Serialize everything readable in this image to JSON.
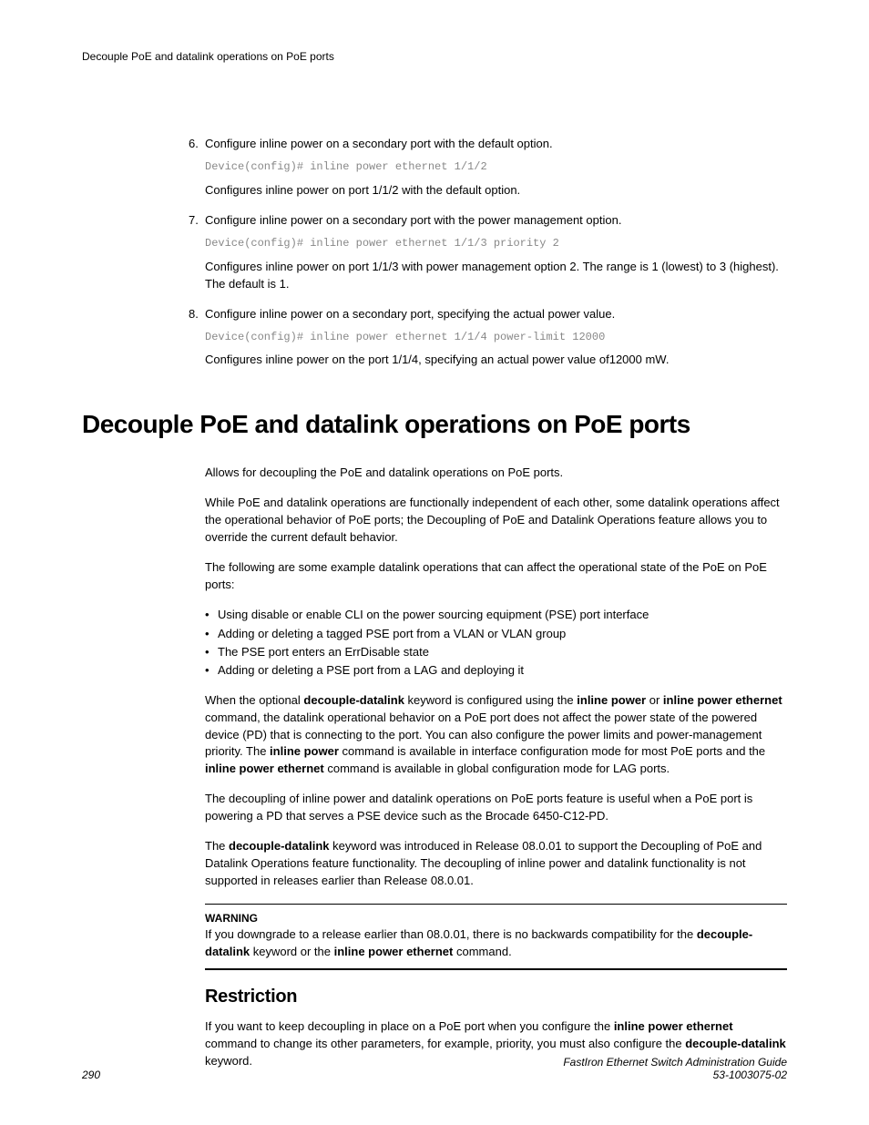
{
  "header": {
    "text": "Decouple PoE and datalink operations on PoE ports"
  },
  "steps": [
    {
      "num": "6.",
      "title": "Configure inline power on a secondary port with the default option.",
      "code": "Device(config)# inline power ethernet 1/1/2",
      "desc": "Configures inline power on port 1/1/2 with the default option."
    },
    {
      "num": "7.",
      "title": "Configure inline power on a secondary port with the power management option.",
      "code": "Device(config)# inline power ethernet 1/1/3 priority 2",
      "desc": "Configures inline power on port 1/1/3 with power management option 2. The range is 1 (lowest) to 3 (highest). The default is 1."
    },
    {
      "num": "8.",
      "title": "Configure inline power on a secondary port, specifying the actual power value.",
      "code": "Device(config)# inline power ethernet 1/1/4 power-limit 12000",
      "desc": "Configures inline power on the port 1/1/4, specifying an actual power value of12000 mW."
    }
  ],
  "heading": "Decouple PoE and datalink operations on PoE ports",
  "intro": "Allows for decoupling the PoE and datalink operations on PoE ports.",
  "p1": "While PoE and datalink operations are functionally independent of each other, some datalink operations affect the operational behavior of PoE ports; the Decoupling of PoE and Datalink Operations feature allows you to override the current default behavior.",
  "p2": "The following are some example datalink operations that can affect the operational state of the PoE on PoE ports:",
  "bullets": [
    "Using disable or enable CLI on the power sourcing equipment (PSE) port interface",
    "Adding or deleting a tagged PSE port from a VLAN or VLAN group",
    "The PSE port enters an ErrDisable state",
    "Adding or deleting a PSE port from a LAG and deploying it"
  ],
  "p3": {
    "t1": "When the optional ",
    "b1": "decouple-datalink",
    "t2": " keyword is configured using the ",
    "b2": "inline power",
    "t3": " or ",
    "b3": "inline power ethernet",
    "t4": " command, the datalink operational behavior on a PoE port does not affect the power state of the powered device (PD) that is connecting to the port. You can also configure the power limits and power-management priority. The ",
    "b4": "inline power",
    "t5": " command is available in interface configuration mode for most PoE ports and the ",
    "b5": "inline power ethernet",
    "t6": " command is available in global configuration mode for LAG ports."
  },
  "p4": "The decoupling of inline power and datalink operations on PoE ports feature is useful when a PoE port is powering a PD that serves a PSE device such as the Brocade 6450-C12-PD.",
  "p5": {
    "t1": "The ",
    "b1": "decouple-datalink",
    "t2": " keyword was introduced in Release 08.0.01 to support the Decoupling of PoE and Datalink Operations feature functionality. The decoupling of inline power and datalink functionality is not supported in releases earlier than Release 08.0.01."
  },
  "warning": {
    "title": "WARNING",
    "t1": "If you downgrade to a release earlier than 08.0.01, there is no backwards compatibility for the ",
    "b1": "decouple-datalink",
    "t2": " keyword or the ",
    "b2": "inline power ethernet",
    "t3": " command."
  },
  "restriction": {
    "heading": "Restriction",
    "t1": "If you want to keep decoupling in place on a PoE port when you configure the ",
    "b1": "inline power ethernet",
    "t2": " command to change its other parameters, for example, priority, you must also configure the ",
    "b2": "decouple-datalink",
    "t3": " keyword."
  },
  "footer": {
    "page": "290",
    "guide": "FastIron Ethernet Switch Administration Guide",
    "doc": "53-1003075-02"
  }
}
